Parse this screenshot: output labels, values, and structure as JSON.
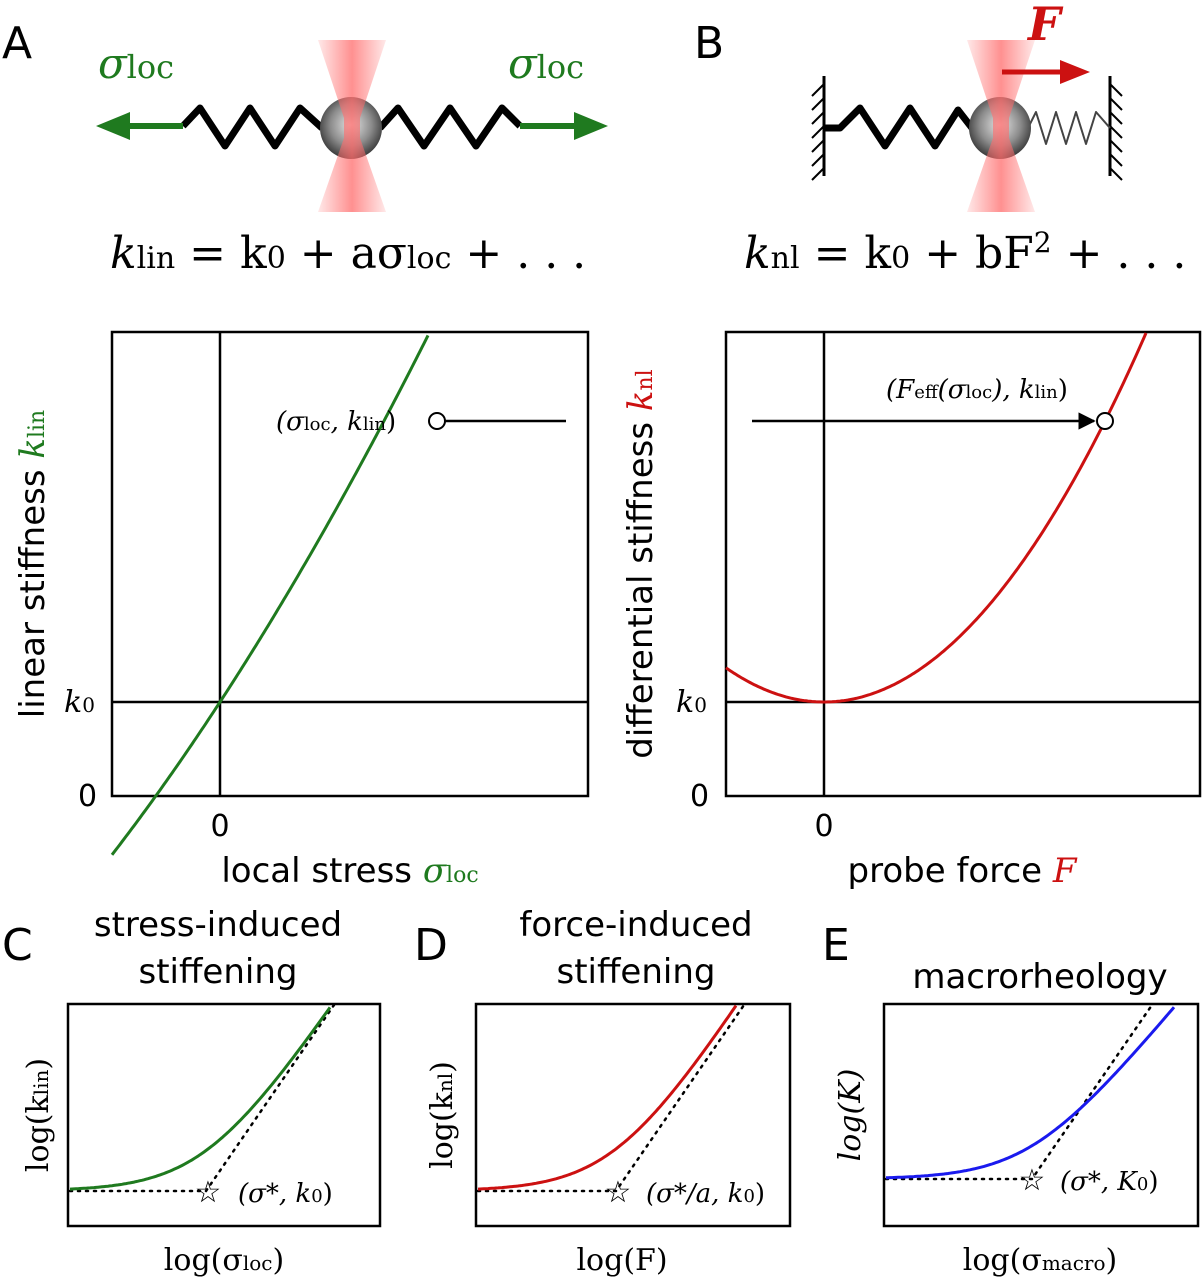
{
  "panels": {
    "A": {
      "letter": "A",
      "arrow_label_left": "σ",
      "arrow_label_left_sub": "loc",
      "arrow_label_right": "σ",
      "arrow_label_right_sub": "loc",
      "equation": {
        "lhs": "k",
        "lhs_sub": "lin",
        "mid": " = k",
        "mid_sub": "0",
        "rhs": " + aσ",
        "rhs_sub": "loc",
        "tail": " + . . ."
      },
      "ylabel": "linear stiffness ",
      "ylabel_sym": "k",
      "ylabel_sub": "lin",
      "xlabel": "local stress ",
      "xlabel_sym": "σ",
      "xlabel_sub": "loc",
      "tick_y_k0": "k",
      "tick_y_k0_sub": "0",
      "tick_y_zero": "0",
      "tick_x_zero": "0",
      "annotation": "(σ",
      "annotation_sub": "loc",
      "annotation_mid": ", k",
      "annotation_sub2": "lin",
      "annotation_end": ")",
      "curve_color": "#1f7a1f"
    },
    "B": {
      "letter": "B",
      "force_label": "F",
      "equation": {
        "lhs": "k",
        "lhs_sub": "nl",
        "mid": " = k",
        "mid_sub": "0",
        "rhs": " + bF",
        "rhs_sup": "2",
        "tail": " + . . ."
      },
      "ylabel": "differential stiffness ",
      "ylabel_sym": "k",
      "ylabel_sub": "nl",
      "xlabel": "probe force ",
      "xlabel_sym": "F",
      "tick_y_k0": "k",
      "tick_y_k0_sub": "0",
      "tick_y_zero": "0",
      "tick_x_zero": "0",
      "annotation": "(F",
      "annotation_sub": "eff",
      "annotation_mid": "(σ",
      "annotation_sub2": "loc",
      "annotation_mid2": "), k",
      "annotation_sub3": "lin",
      "annotation_end": ")",
      "curve_color": "#cc1111"
    },
    "C": {
      "letter": "C",
      "title_line1": "stress-induced",
      "title_line2": "stiffening",
      "ylabel": "log(k",
      "ylabel_sub": "lin",
      "ylabel_end": ")",
      "xlabel": "log(σ",
      "xlabel_sub": "loc",
      "xlabel_end": ")",
      "star_label": "(σ*,  k",
      "star_label_sub": "0",
      "star_label_end": ")",
      "curve_color": "#1f7a1f"
    },
    "D": {
      "letter": "D",
      "title_line1": "force-induced",
      "title_line2": "stiffening",
      "ylabel": "log(k",
      "ylabel_sub": "nl",
      "ylabel_end": ")",
      "xlabel": "log(F)",
      "star_label": "(σ*/a,  k",
      "star_label_sub": "0",
      "star_label_end": ")",
      "curve_color": "#cc1111"
    },
    "E": {
      "letter": "E",
      "title_line1": "macrorheology",
      "ylabel": "log(K)",
      "xlabel": "log(σ",
      "xlabel_sub": "macro",
      "xlabel_end": ")",
      "star_label": "(σ*, K",
      "star_label_sub": "0",
      "star_label_end": ")",
      "curve_color": "#1a1aee"
    }
  }
}
